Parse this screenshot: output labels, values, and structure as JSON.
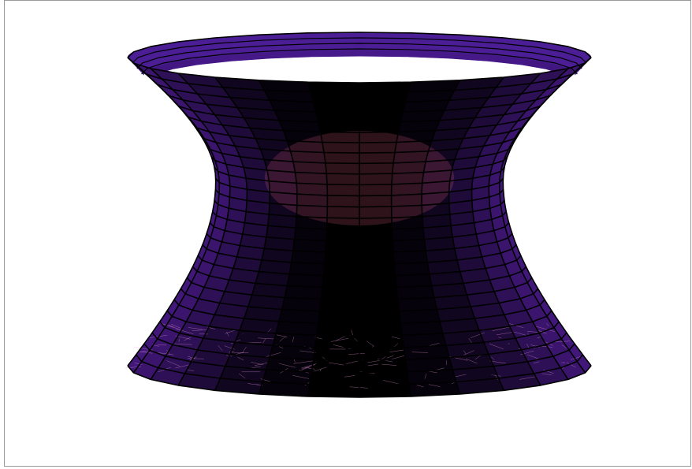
{
  "figure": {
    "surface": "hyperboloid-of-one-sheet",
    "rendering": "shaded-mesh",
    "meridian_count": 14,
    "parallel_count": 28,
    "waist_ratio": 0.62,
    "colors": {
      "background": "#ffffff",
      "frame_border": "#9a9a9a",
      "mesh_line": "#000000",
      "highlight": "#ff2a55",
      "front_mid": "#d0104a",
      "shadow": "#4a1a8a",
      "deep_shadow": "#3a1070",
      "interior": "#4b1e96",
      "speckle": "#f0a0e0"
    }
  }
}
